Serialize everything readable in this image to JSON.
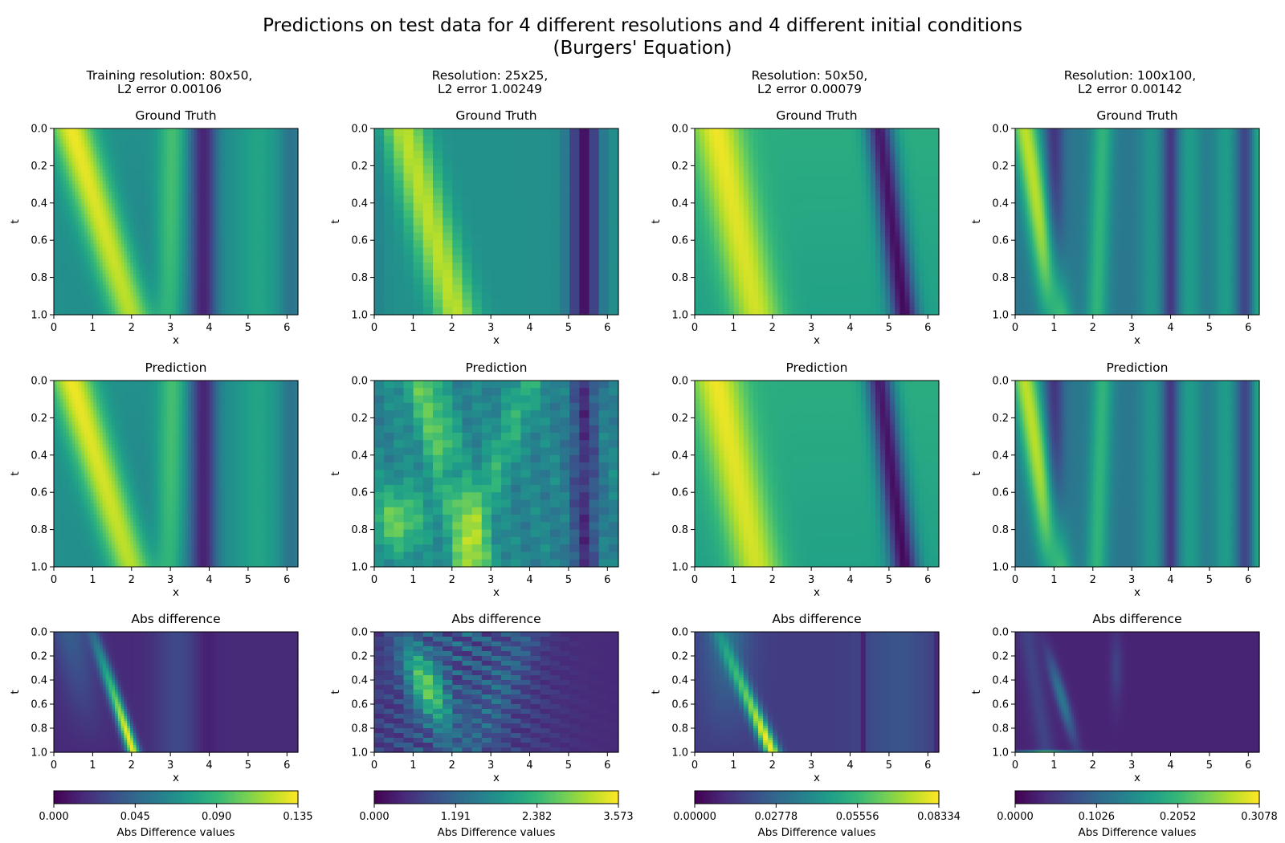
{
  "figure": {
    "title_line1": "Predictions on test data for 4 different resolutions and 4 different initial conditions",
    "title_line2": "(Burgers' Equation)"
  },
  "row_titles": [
    "Ground Truth",
    "Prediction",
    "Abs difference"
  ],
  "columns": [
    {
      "title_line1": "Training resolution: 80x50,",
      "title_line2": "L2 error 0.00106"
    },
    {
      "title_line1": "Resolution: 25x25,",
      "title_line2": "L2 error 1.00249"
    },
    {
      "title_line1": "Resolution: 50x50,",
      "title_line2": "L2 error 0.00079"
    },
    {
      "title_line1": "Resolution: 100x100,",
      "title_line2": "L2 error 0.00142"
    }
  ],
  "colors": {
    "viridis_low": "#440154",
    "viridis_mid": "#21918c",
    "viridis_high": "#fde725"
  },
  "chart_data": [
    {
      "type": "heatmap",
      "panel": "Ground Truth",
      "column": 1,
      "grid": [
        80,
        50
      ],
      "xlabel": "x",
      "ylabel": "t",
      "xlim": [
        0,
        6.283
      ],
      "ylim": [
        1.0,
        0.0
      ],
      "xticks": [
        "0",
        "1",
        "2",
        "3",
        "4",
        "5",
        "6"
      ],
      "yticks": [
        "0.0",
        "0.2",
        "0.4",
        "0.6",
        "0.8",
        "1.0"
      ]
    },
    {
      "type": "heatmap",
      "panel": "Prediction",
      "column": 1,
      "grid": [
        80,
        50
      ],
      "xlabel": "x",
      "ylabel": "t",
      "xlim": [
        0,
        6.283
      ],
      "ylim": [
        1.0,
        0.0
      ],
      "xticks": [
        "0",
        "1",
        "2",
        "3",
        "4",
        "5",
        "6"
      ],
      "yticks": [
        "0.0",
        "0.2",
        "0.4",
        "0.6",
        "0.8",
        "1.0"
      ]
    },
    {
      "type": "heatmap",
      "panel": "Abs difference",
      "column": 1,
      "grid": [
        80,
        50
      ],
      "xlabel": "x",
      "ylabel": "t",
      "xlim": [
        0,
        6.283
      ],
      "ylim": [
        1.0,
        0.0
      ],
      "xticks": [
        "0",
        "1",
        "2",
        "3",
        "4",
        "5",
        "6"
      ],
      "yticks": [
        "0.0",
        "0.2",
        "0.4",
        "0.6",
        "0.8",
        "1.0"
      ],
      "colorbar": {
        "label": "Abs Difference values",
        "ticks": [
          "0.000",
          "0.045",
          "0.090",
          "0.135"
        ],
        "range": [
          0,
          0.135
        ]
      }
    },
    {
      "type": "heatmap",
      "panel": "Ground Truth",
      "column": 2,
      "grid": [
        25,
        25
      ],
      "xlabel": "x",
      "ylabel": "t",
      "xlim": [
        0,
        6.283
      ],
      "ylim": [
        1.0,
        0.0
      ],
      "xticks": [
        "0",
        "1",
        "2",
        "3",
        "4",
        "5",
        "6"
      ],
      "yticks": [
        "0.0",
        "0.2",
        "0.4",
        "0.6",
        "0.8",
        "1.0"
      ]
    },
    {
      "type": "heatmap",
      "panel": "Prediction",
      "column": 2,
      "grid": [
        25,
        25
      ],
      "xlabel": "x",
      "ylabel": "t",
      "xlim": [
        0,
        6.283
      ],
      "ylim": [
        1.0,
        0.0
      ],
      "xticks": [
        "0",
        "1",
        "2",
        "3",
        "4",
        "5",
        "6"
      ],
      "yticks": [
        "0.0",
        "0.2",
        "0.4",
        "0.6",
        "0.8",
        "1.0"
      ]
    },
    {
      "type": "heatmap",
      "panel": "Abs difference",
      "column": 2,
      "grid": [
        25,
        25
      ],
      "xlabel": "x",
      "ylabel": "t",
      "xlim": [
        0,
        6.283
      ],
      "ylim": [
        1.0,
        0.0
      ],
      "xticks": [
        "0",
        "1",
        "2",
        "3",
        "4",
        "5",
        "6"
      ],
      "yticks": [
        "0.0",
        "0.2",
        "0.4",
        "0.6",
        "0.8",
        "1.0"
      ],
      "colorbar": {
        "label": "Abs Difference values",
        "ticks": [
          "0.000",
          "1.191",
          "2.382",
          "3.573"
        ],
        "range": [
          0,
          3.573
        ]
      }
    },
    {
      "type": "heatmap",
      "panel": "Ground Truth",
      "column": 3,
      "grid": [
        50,
        50
      ],
      "xlabel": "x",
      "ylabel": "t",
      "xlim": [
        0,
        6.283
      ],
      "ylim": [
        1.0,
        0.0
      ],
      "xticks": [
        "0",
        "1",
        "2",
        "3",
        "4",
        "5",
        "6"
      ],
      "yticks": [
        "0.0",
        "0.2",
        "0.4",
        "0.6",
        "0.8",
        "1.0"
      ]
    },
    {
      "type": "heatmap",
      "panel": "Prediction",
      "column": 3,
      "grid": [
        50,
        50
      ],
      "xlabel": "x",
      "ylabel": "t",
      "xlim": [
        0,
        6.283
      ],
      "ylim": [
        1.0,
        0.0
      ],
      "xticks": [
        "0",
        "1",
        "2",
        "3",
        "4",
        "5",
        "6"
      ],
      "yticks": [
        "0.0",
        "0.2",
        "0.4",
        "0.6",
        "0.8",
        "1.0"
      ]
    },
    {
      "type": "heatmap",
      "panel": "Abs difference",
      "column": 3,
      "grid": [
        50,
        50
      ],
      "xlabel": "x",
      "ylabel": "t",
      "xlim": [
        0,
        6.283
      ],
      "ylim": [
        1.0,
        0.0
      ],
      "xticks": [
        "0",
        "1",
        "2",
        "3",
        "4",
        "5",
        "6"
      ],
      "yticks": [
        "0.0",
        "0.2",
        "0.4",
        "0.6",
        "0.8",
        "1.0"
      ],
      "colorbar": {
        "label": "Abs Difference values",
        "ticks": [
          "0.00000",
          "0.02778",
          "0.05556",
          "0.08334"
        ],
        "range": [
          0,
          0.08334
        ]
      }
    },
    {
      "type": "heatmap",
      "panel": "Ground Truth",
      "column": 4,
      "grid": [
        100,
        100
      ],
      "xlabel": "x",
      "ylabel": "t",
      "xlim": [
        0,
        6.283
      ],
      "ylim": [
        1.0,
        0.0
      ],
      "xticks": [
        "0",
        "1",
        "2",
        "3",
        "4",
        "5",
        "6"
      ],
      "yticks": [
        "0.0",
        "0.2",
        "0.4",
        "0.6",
        "0.8",
        "1.0"
      ]
    },
    {
      "type": "heatmap",
      "panel": "Prediction",
      "column": 4,
      "grid": [
        100,
        100
      ],
      "xlabel": "x",
      "ylabel": "t",
      "xlim": [
        0,
        6.283
      ],
      "ylim": [
        1.0,
        0.0
      ],
      "xticks": [
        "0",
        "1",
        "2",
        "3",
        "4",
        "5",
        "6"
      ],
      "yticks": [
        "0.0",
        "0.2",
        "0.4",
        "0.6",
        "0.8",
        "1.0"
      ]
    },
    {
      "type": "heatmap",
      "panel": "Abs difference",
      "column": 4,
      "grid": [
        100,
        100
      ],
      "xlabel": "x",
      "ylabel": "t",
      "xlim": [
        0,
        6.283
      ],
      "ylim": [
        1.0,
        0.0
      ],
      "xticks": [
        "0",
        "1",
        "2",
        "3",
        "4",
        "5",
        "6"
      ],
      "yticks": [
        "0.0",
        "0.2",
        "0.4",
        "0.6",
        "0.8",
        "1.0"
      ],
      "colorbar": {
        "label": "Abs Difference values",
        "ticks": [
          "0.0000",
          "0.1026",
          "0.2052",
          "0.3078"
        ],
        "range": [
          0,
          0.3078
        ]
      }
    }
  ]
}
